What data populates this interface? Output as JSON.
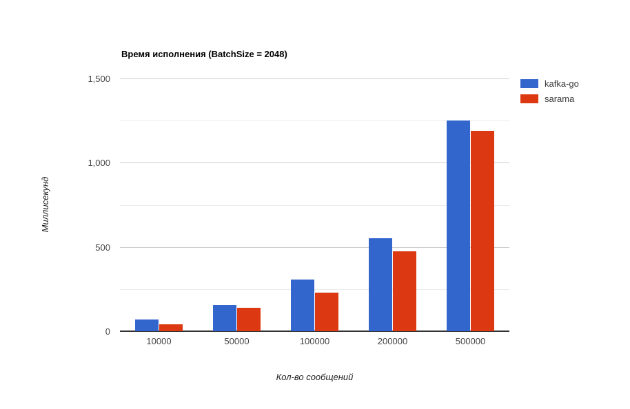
{
  "chart_data": {
    "type": "bar",
    "title": "Время исполнения (BatchSize = 2048)",
    "xlabel": "Кол-во сообщений",
    "ylabel": "Миллисекунд",
    "categories": [
      "10000",
      "50000",
      "100000",
      "200000",
      "500000"
    ],
    "series": [
      {
        "name": "kafka-go",
        "color": "#3366CC",
        "values": [
          70,
          155,
          305,
          550,
          1250
        ]
      },
      {
        "name": "sarama",
        "color": "#DC3912",
        "values": [
          40,
          140,
          230,
          475,
          1190
        ]
      }
    ],
    "ylim": [
      0,
      1500
    ],
    "yticks": [
      0,
      500,
      1000,
      1500
    ],
    "ytick_labels": [
      "0",
      "500",
      "1,000",
      "1,500"
    ],
    "minor_gridlines": [
      250,
      750,
      1250
    ],
    "grid": true,
    "legend_position": "right"
  }
}
